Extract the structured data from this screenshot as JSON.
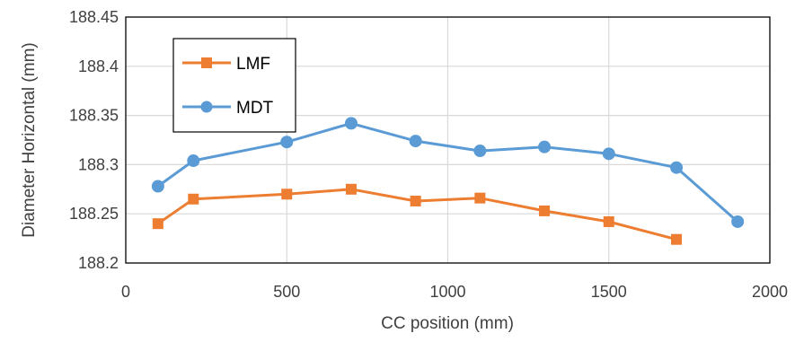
{
  "chart_data": {
    "type": "line",
    "title": "",
    "xlabel": "CC position (mm)",
    "ylabel": "Diameter Horizontal (mm)",
    "xlim": [
      0,
      2000
    ],
    "ylim": [
      188.2,
      188.45
    ],
    "x_ticks": [
      "0",
      "500",
      "1000",
      "1500",
      "2000"
    ],
    "x_tick_values": [
      0,
      500,
      1000,
      1500,
      2000
    ],
    "y_ticks": [
      "188.2",
      "188.25",
      "188.3",
      "188.35",
      "188.4",
      "188.45"
    ],
    "y_tick_values": [
      188.2,
      188.25,
      188.3,
      188.35,
      188.4,
      188.45
    ],
    "grid": "vertical and horizontal",
    "legend": {
      "placement": "top-left"
    },
    "series": [
      {
        "name": "LMF",
        "color": "#ED7D31",
        "marker": "square",
        "x": [
          100,
          210,
          500,
          700,
          900,
          1100,
          1300,
          1500,
          1710
        ],
        "values": [
          188.24,
          188.265,
          188.27,
          188.275,
          188.263,
          188.266,
          188.253,
          188.242,
          188.224
        ]
      },
      {
        "name": "MDT",
        "color": "#5B9BD5",
        "marker": "circle",
        "x": [
          100,
          210,
          500,
          700,
          900,
          1100,
          1300,
          1500,
          1710,
          1900
        ],
        "values": [
          188.278,
          188.304,
          188.323,
          188.342,
          188.324,
          188.314,
          188.318,
          188.311,
          188.297,
          188.242
        ]
      }
    ]
  }
}
